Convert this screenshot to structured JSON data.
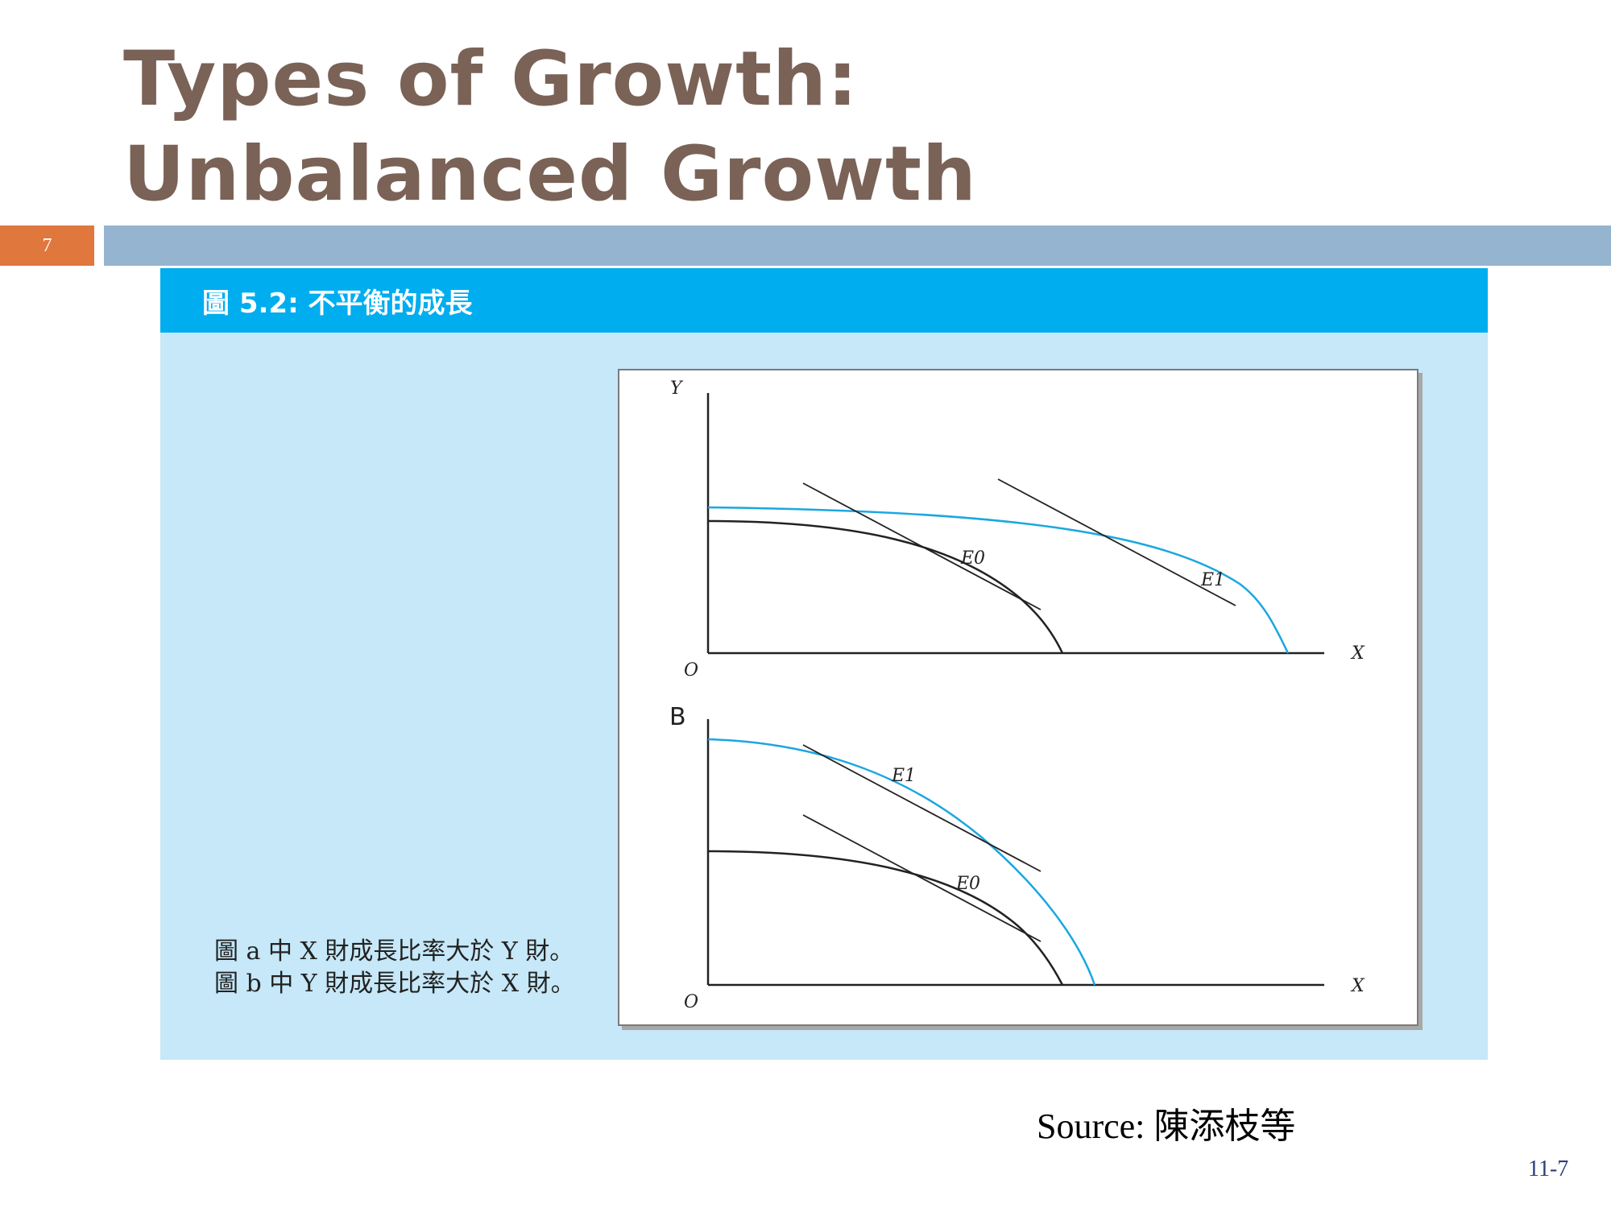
{
  "slide": {
    "title_line1": "Types of Growth:",
    "title_line2": "Unbalanced Growth",
    "slide_number": "7",
    "source": "Source: 陳添枝等",
    "page_number": "11-7"
  },
  "figure": {
    "header": "圖 5.2:  不平衡的成長",
    "caption": "圖 a 中 X 財成長比率大於 Y 財。圖 b 中 Y 財成長比率大於 X 財。",
    "panel_a": {
      "y_label": "Y",
      "x_label": "X",
      "origin": "O",
      "e0": "E0",
      "e1": "E1"
    },
    "panel_b": {
      "panel_label": "B",
      "x_label": "X",
      "origin": "O",
      "e0": "E0",
      "e1": "E1"
    }
  },
  "colors": {
    "title": "#7a6257",
    "badge": "#e0773d",
    "rule": "#95b4cf",
    "panel_bg": "#c6e8f8",
    "header_bg": "#00adef",
    "new_frontier": "#1aa7e0",
    "old_frontier": "#222222"
  }
}
